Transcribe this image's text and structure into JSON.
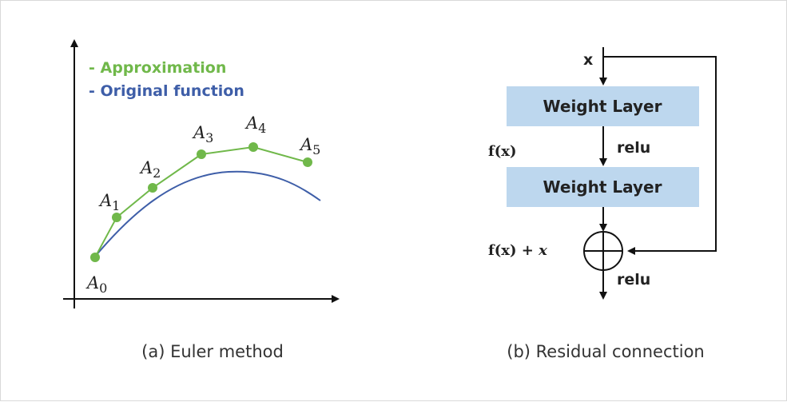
{
  "euler": {
    "legend_approx": "- Approximation",
    "legend_original": "- Original function",
    "points": [
      {
        "base": "A",
        "sub": "0"
      },
      {
        "base": "A",
        "sub": "1"
      },
      {
        "base": "A",
        "sub": "2"
      },
      {
        "base": "A",
        "sub": "3"
      },
      {
        "base": "A",
        "sub": "4"
      },
      {
        "base": "A",
        "sub": "5"
      }
    ],
    "caption": "(a)  Euler  method",
    "colors": {
      "approx": "#70b84a",
      "original": "#3e5ea8",
      "axis": "#111111"
    }
  },
  "residual": {
    "input_label": "x",
    "layer1": "Weight  Layer",
    "layer2": "Weight  Layer",
    "relu1": "relu",
    "relu2": "relu",
    "fx": "f(x)",
    "fx_plus_x_main": "f(x) + ",
    "fx_plus_x_var": "x",
    "caption": "(b)  Residual  connection",
    "colors": {
      "layer_fill": "#bdd7ee",
      "line": "#111111"
    }
  }
}
